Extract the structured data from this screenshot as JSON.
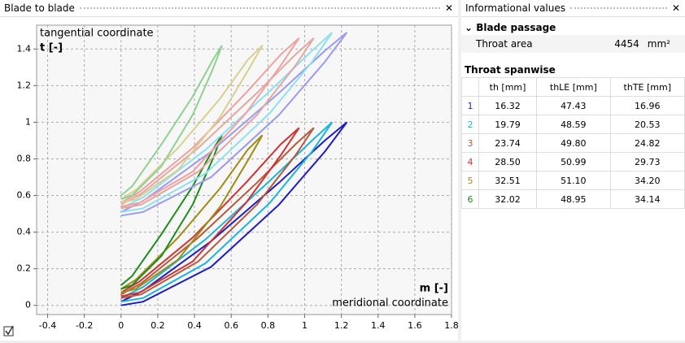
{
  "left_panel": {
    "title": "Blade to blade"
  },
  "right_panel": {
    "title": "Informational values",
    "blade_passage": {
      "title": "Blade passage",
      "label": "Throat area",
      "value": "4454",
      "unit": "mm²"
    },
    "throat_spanwise": {
      "title": "Throat spanwise",
      "columns": [
        "th [mm]",
        "thLE [mm]",
        "thTE [mm]"
      ],
      "rows": [
        {
          "label": "1",
          "color": "#1c1cc8",
          "cells": [
            "16.32",
            "47.43",
            "16.96"
          ]
        },
        {
          "label": "2",
          "color": "#1cb4dc",
          "cells": [
            "19.79",
            "48.59",
            "20.53"
          ]
        },
        {
          "label": "3",
          "color": "#b45a3c",
          "cells": [
            "23.74",
            "49.80",
            "24.82"
          ]
        },
        {
          "label": "4",
          "color": "#d23232",
          "cells": [
            "28.50",
            "50.99",
            "29.73"
          ]
        },
        {
          "label": "5",
          "color": "#a08c14",
          "cells": [
            "32.51",
            "51.10",
            "34.20"
          ]
        },
        {
          "label": "6",
          "color": "#1e8c1e",
          "cells": [
            "32.02",
            "48.95",
            "34.14"
          ]
        }
      ]
    }
  },
  "chart_data": {
    "type": "line",
    "y_label_title": "tangential coordinate",
    "y_label": "t [-]",
    "x_label": "m [-]",
    "x_label_title": "meridional coordinate",
    "xlim": [
      -0.46,
      1.8
    ],
    "ylim": [
      -0.05,
      1.53
    ],
    "xticks": [
      -0.4,
      -0.2,
      0,
      0.2,
      0.4,
      0.6,
      0.8,
      1,
      1.2,
      1.4,
      1.6,
      1.8
    ],
    "yticks": [
      0,
      0.2,
      0.4,
      0.6,
      0.8,
      1,
      1.2,
      1.4
    ],
    "grid": true,
    "series": [
      {
        "color": "#1c1cc8",
        "x": [
          0,
          0.12,
          0.49,
          0.86,
          1.11,
          1.23,
          1.11,
          0.86,
          0.49,
          0.12,
          0
        ],
        "y": [
          0,
          0.02,
          0.21,
          0.55,
          0.84,
          1.0,
          0.9,
          0.67,
          0.35,
          0.08,
          0.02
        ]
      },
      {
        "color": "#1cb4dc",
        "x": [
          0,
          0.12,
          0.46,
          0.81,
          1.04,
          1.15,
          1.04,
          0.81,
          0.46,
          0.12,
          0
        ],
        "y": [
          0.02,
          0.04,
          0.23,
          0.56,
          0.84,
          1.0,
          0.9,
          0.68,
          0.36,
          0.1,
          0.04
        ]
      },
      {
        "color": "#b45a3c",
        "x": [
          0,
          0.11,
          0.42,
          0.74,
          0.95,
          1.05,
          0.95,
          0.74,
          0.42,
          0.11,
          0
        ],
        "y": [
          0.04,
          0.06,
          0.24,
          0.55,
          0.82,
          0.97,
          0.88,
          0.67,
          0.37,
          0.12,
          0.06
        ]
      },
      {
        "color": "#d23232",
        "x": [
          0,
          0.1,
          0.39,
          0.68,
          0.87,
          0.97,
          0.87,
          0.68,
          0.39,
          0.1,
          0
        ],
        "y": [
          0.05,
          0.07,
          0.24,
          0.56,
          0.82,
          0.97,
          0.88,
          0.67,
          0.37,
          0.13,
          0.07
        ]
      },
      {
        "color": "#a08c14",
        "x": [
          0,
          0.08,
          0.31,
          0.54,
          0.69,
          0.77,
          0.69,
          0.54,
          0.31,
          0.08,
          0
        ],
        "y": [
          0.07,
          0.09,
          0.25,
          0.54,
          0.79,
          0.93,
          0.85,
          0.64,
          0.37,
          0.14,
          0.09
        ]
      },
      {
        "color": "#1e8c1e",
        "x": [
          0,
          0.06,
          0.22,
          0.39,
          0.5,
          0.55,
          0.5,
          0.39,
          0.22,
          0.06,
          0
        ],
        "y": [
          0.09,
          0.11,
          0.27,
          0.55,
          0.8,
          0.93,
          0.85,
          0.65,
          0.39,
          0.16,
          0.11
        ]
      },
      {
        "color": "#9a9af0",
        "x": [
          0,
          0.12,
          0.49,
          0.86,
          1.11,
          1.23,
          1.11,
          0.86,
          0.49,
          0.12,
          0
        ],
        "y": [
          0.49,
          0.51,
          0.7,
          1.04,
          1.33,
          1.49,
          1.39,
          1.16,
          0.84,
          0.57,
          0.51
        ]
      },
      {
        "color": "#8ee0f0",
        "x": [
          0,
          0.12,
          0.46,
          0.81,
          1.04,
          1.15,
          1.04,
          0.81,
          0.46,
          0.12,
          0
        ],
        "y": [
          0.51,
          0.53,
          0.72,
          1.05,
          1.33,
          1.49,
          1.39,
          1.17,
          0.85,
          0.59,
          0.53
        ]
      },
      {
        "color": "#e0a8a0",
        "x": [
          0,
          0.11,
          0.42,
          0.74,
          0.95,
          1.05,
          0.95,
          0.74,
          0.42,
          0.11,
          0
        ],
        "y": [
          0.53,
          0.55,
          0.73,
          1.04,
          1.31,
          1.46,
          1.37,
          1.16,
          0.86,
          0.61,
          0.55
        ]
      },
      {
        "color": "#f0a0a0",
        "x": [
          0,
          0.1,
          0.39,
          0.68,
          0.87,
          0.97,
          0.87,
          0.68,
          0.39,
          0.1,
          0
        ],
        "y": [
          0.54,
          0.56,
          0.73,
          1.05,
          1.31,
          1.46,
          1.37,
          1.16,
          0.86,
          0.62,
          0.56
        ]
      },
      {
        "color": "#d8d090",
        "x": [
          0,
          0.08,
          0.31,
          0.54,
          0.69,
          0.77,
          0.69,
          0.54,
          0.31,
          0.08,
          0
        ],
        "y": [
          0.56,
          0.58,
          0.74,
          1.03,
          1.28,
          1.42,
          1.34,
          1.13,
          0.86,
          0.63,
          0.58
        ]
      },
      {
        "color": "#90d090",
        "x": [
          0,
          0.06,
          0.22,
          0.39,
          0.5,
          0.55,
          0.5,
          0.39,
          0.22,
          0.06,
          0
        ],
        "y": [
          0.58,
          0.6,
          0.76,
          1.04,
          1.29,
          1.42,
          1.34,
          1.14,
          0.88,
          0.65,
          0.6
        ]
      }
    ]
  }
}
